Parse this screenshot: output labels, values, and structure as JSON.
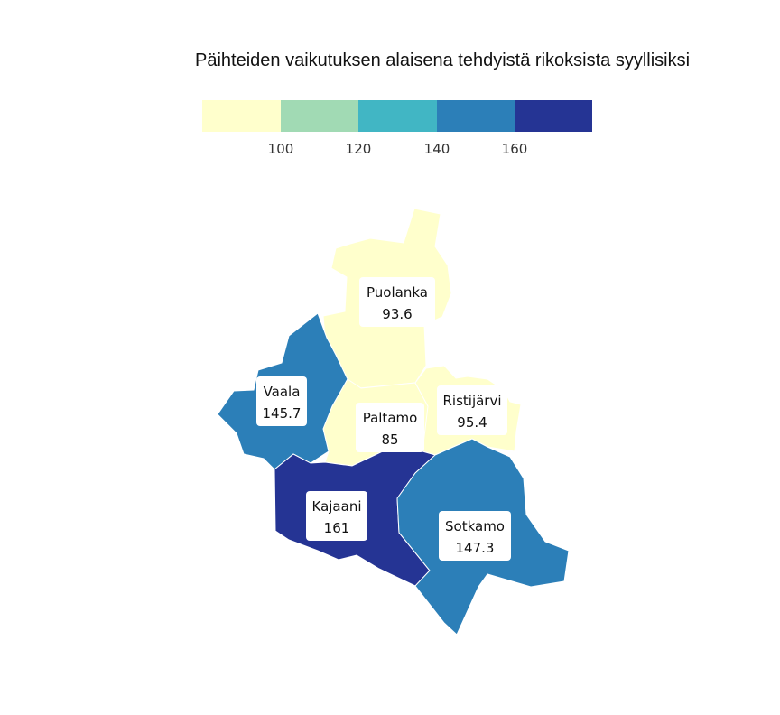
{
  "title": "Päihteiden vaikutuksen alaisena tehdyistä rikoksista syyllisiksi",
  "legend": {
    "bins": [
      {
        "color": "#ffffcc"
      },
      {
        "color": "#a1dab4"
      },
      {
        "color": "#41b6c4"
      },
      {
        "color": "#2c7fb8"
      },
      {
        "color": "#253494"
      }
    ],
    "ticks": [
      "100",
      "120",
      "140",
      "160"
    ]
  },
  "municipalities": [
    {
      "name": "Puolanka",
      "value": "93.6",
      "color": "#ffffcc"
    },
    {
      "name": "Vaala",
      "value": "145.7",
      "color": "#2c7fb8"
    },
    {
      "name": "Paltamo",
      "value": "85",
      "color": "#ffffcc"
    },
    {
      "name": "Ristijärvi",
      "value": "95.4",
      "color": "#ffffcc"
    },
    {
      "name": "Kajaani",
      "value": "161",
      "color": "#253494"
    },
    {
      "name": "Sotkamo",
      "value": "147.3",
      "color": "#2c7fb8"
    }
  ]
}
